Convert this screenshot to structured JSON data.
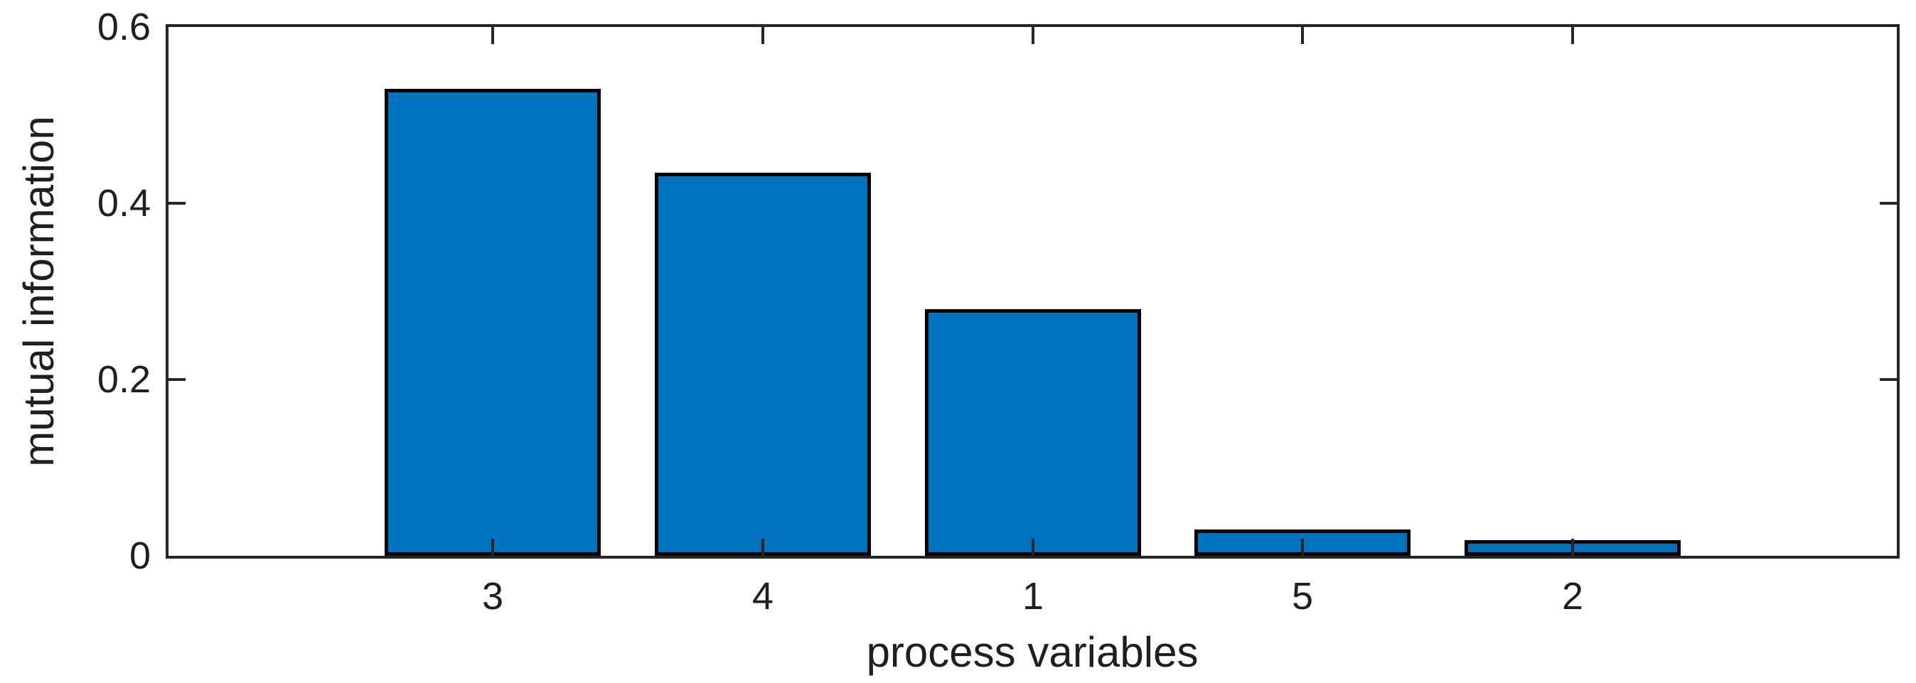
{
  "chart_data": {
    "type": "bar",
    "title": "",
    "xlabel": "process variables",
    "ylabel": "mutual information",
    "categories": [
      "3",
      "4",
      "1",
      "5",
      "2"
    ],
    "values": [
      0.53,
      0.435,
      0.28,
      0.03,
      0.018
    ],
    "ylim": [
      0,
      0.6
    ],
    "yticks": [
      0,
      0.2,
      0.4,
      0.6
    ],
    "ytick_labels": [
      "0",
      "0.2",
      "0.4",
      "0.6"
    ],
    "bar_color": "#0072BD",
    "bar_edge_color": "#000000",
    "axis_color": "#262626",
    "grid": false,
    "legend": null,
    "bar_width_fraction": 0.8,
    "tick_direction": "in",
    "box": true
  }
}
